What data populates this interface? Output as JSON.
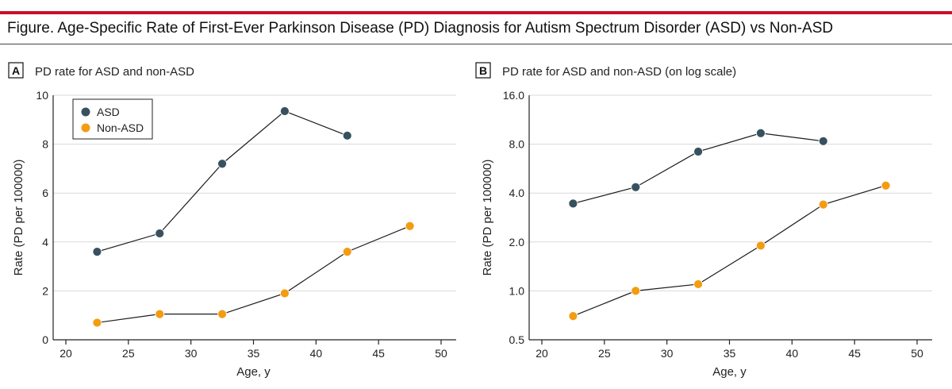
{
  "figure": {
    "title": "Figure. Age-Specific Rate of First-Ever Parkinson Disease (PD) Diagnosis for Autism Spectrum Disorder (ASD) vs Non-ASD"
  },
  "colors": {
    "accent_bar": "#c8102e",
    "asd": "#37515f",
    "non_asd": "#f39c12",
    "grid": "#d9d9d9",
    "line": "#1a1a1a"
  },
  "chart_data": [
    {
      "panel": "A",
      "title": "PD rate for ASD and non-ASD",
      "type": "line",
      "xlabel": "Age, y",
      "ylabel": "Rate (PD per 100000)",
      "xlim": [
        20,
        50
      ],
      "ylim": [
        0,
        10
      ],
      "yscale": "linear",
      "xticks": [
        20,
        25,
        30,
        35,
        40,
        45,
        50
      ],
      "yticks": [
        0,
        2,
        4,
        6,
        8,
        10
      ],
      "ytick_labels": [
        "0",
        "2",
        "4",
        "6",
        "8",
        "10"
      ],
      "grid": true,
      "legend": {
        "position": "top-left",
        "entries": [
          "ASD",
          "Non-ASD"
        ]
      },
      "series": [
        {
          "name": "ASD",
          "x": [
            22.5,
            27.5,
            32.5,
            37.5,
            42.5
          ],
          "y": [
            3.6,
            4.35,
            7.2,
            9.35,
            8.35
          ]
        },
        {
          "name": "Non-ASD",
          "x": [
            22.5,
            27.5,
            32.5,
            37.5,
            42.5,
            47.5
          ],
          "y": [
            0.7,
            1.05,
            1.05,
            1.9,
            3.6,
            4.65
          ]
        }
      ]
    },
    {
      "panel": "B",
      "title": "PD rate for ASD and non-ASD (on log scale)",
      "type": "line",
      "xlabel": "Age, y",
      "ylabel": "Rate (PD per 100000)",
      "xlim": [
        20,
        50
      ],
      "ylim": [
        0.5,
        16
      ],
      "yscale": "log",
      "xticks": [
        20,
        25,
        30,
        35,
        40,
        45,
        50
      ],
      "yticks": [
        0.5,
        1,
        2,
        4,
        8,
        16
      ],
      "ytick_labels": [
        "0.5",
        "1.0",
        "2.0",
        "4.0",
        "8.0",
        "16.0"
      ],
      "grid": true,
      "series": [
        {
          "name": "ASD",
          "x": [
            22.5,
            27.5,
            32.5,
            37.5,
            42.5
          ],
          "y": [
            3.45,
            4.35,
            7.2,
            9.35,
            8.35
          ]
        },
        {
          "name": "Non-ASD",
          "x": [
            22.5,
            27.5,
            32.5,
            37.5,
            42.5,
            47.5
          ],
          "y": [
            0.7,
            1.0,
            1.1,
            1.9,
            3.4,
            4.45
          ]
        }
      ]
    }
  ]
}
